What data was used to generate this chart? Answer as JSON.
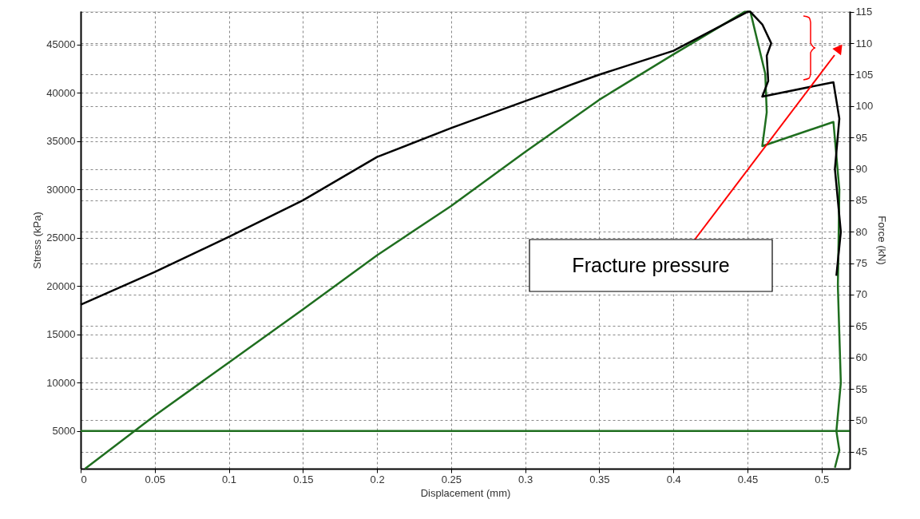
{
  "chart_data": {
    "type": "line",
    "xlabel": "Displacement (mm)",
    "ylabel": "Stress (kPa)",
    "y2label": "Force (kN)",
    "xlim": [
      0,
      0.519
    ],
    "xticks": [
      0,
      0.05,
      0.1,
      0.15,
      0.2,
      0.25,
      0.3,
      0.35,
      0.4,
      0.45,
      0.5
    ],
    "ylim": [
      1100,
      48470
    ],
    "yticks": [
      5000,
      10000,
      15000,
      20000,
      25000,
      30000,
      35000,
      40000,
      45000
    ],
    "y2lim": [
      42.3,
      115.1
    ],
    "y2ticks": [
      45,
      50,
      55,
      60,
      65,
      70,
      75,
      80,
      85,
      90,
      95,
      100,
      105,
      110,
      115
    ],
    "grid": true,
    "marker": "none",
    "line_style": "solid",
    "series": [
      {
        "color": "#1f6e1f",
        "axis": "y",
        "x": [
          0.003,
          0.05,
          0.1,
          0.15,
          0.2,
          0.25,
          0.3,
          0.35,
          0.4,
          0.448,
          0.452,
          0.462,
          0.463,
          0.46,
          0.508,
          0.512,
          0.511,
          0.513,
          0.51,
          0.512,
          0.509
        ],
        "values": [
          1100,
          6600,
          12100,
          17600,
          23200,
          28300,
          33900,
          39300,
          44000,
          48400,
          48400,
          42000,
          38000,
          34500,
          37000,
          30000,
          20000,
          10000,
          5000,
          3000,
          1200
        ]
      },
      {
        "color": "#000000",
        "axis": "y2",
        "x": [
          0,
          0.05,
          0.1,
          0.15,
          0.2,
          0.25,
          0.3,
          0.35,
          0.4,
          0.45,
          0.452,
          0.46,
          0.466,
          0.463,
          0.464,
          0.46,
          0.508,
          0.512,
          0.509,
          0.513,
          0.51
        ],
        "values": [
          68.4,
          73.6,
          79.2,
          85.0,
          91.9,
          96.5,
          100.8,
          105,
          108.8,
          115,
          115,
          113,
          110,
          108,
          104,
          101.5,
          103.8,
          98,
          90,
          80,
          73
        ]
      }
    ],
    "ref_lines": [
      {
        "axis": "y",
        "value": 5000,
        "color": "#1f6e1f"
      }
    ],
    "annotations": [
      "Fracture pressure"
    ]
  }
}
